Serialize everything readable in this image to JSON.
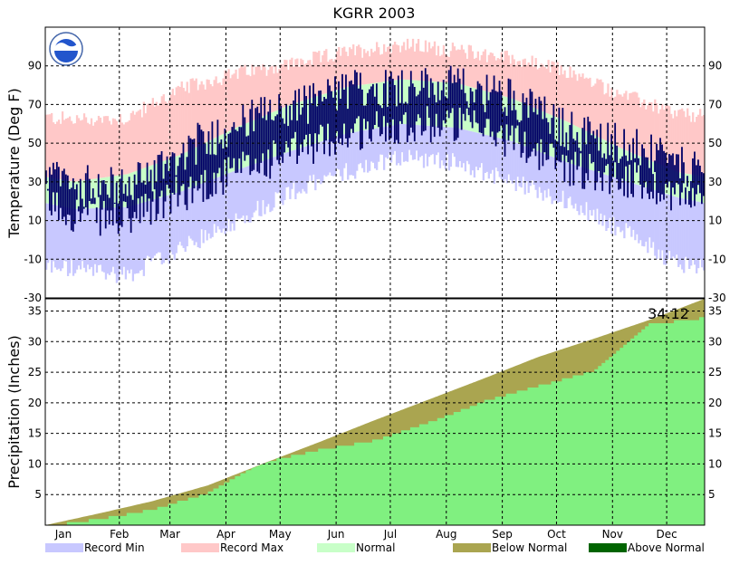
{
  "chart_data": {
    "type": "area",
    "title": "KGRR 2003",
    "x_ticks": [
      "Jan",
      "Feb",
      "Mar",
      "Apr",
      "May",
      "Jun",
      "Jul",
      "Aug",
      "Sep",
      "Oct",
      "Nov",
      "Dec"
    ],
    "days_in_year": 365,
    "month_start_days": [
      0,
      31,
      59,
      90,
      120,
      151,
      181,
      212,
      243,
      273,
      304,
      334
    ],
    "temperature": {
      "ylabel": "Temperature (Deg F)",
      "ylim": [
        -30,
        110
      ],
      "y_ticks": [
        -30,
        -10,
        10,
        30,
        50,
        70,
        90
      ],
      "normal_high_monthly": [
        30,
        34,
        44,
        58,
        70,
        79,
        83,
        81,
        73,
        61,
        47,
        35
      ],
      "normal_low_monthly": [
        16,
        17,
        25,
        36,
        46,
        55,
        60,
        58,
        51,
        40,
        31,
        22
      ],
      "record_high_monthly": [
        62,
        63,
        78,
        86,
        91,
        97,
        101,
        98,
        94,
        87,
        75,
        65
      ],
      "record_low_monthly": [
        -15,
        -18,
        -5,
        10,
        25,
        35,
        43,
        40,
        30,
        20,
        5,
        -12
      ],
      "observed_high_monthly": [
        28,
        27,
        45,
        60,
        68,
        77,
        80,
        79,
        74,
        57,
        50,
        38
      ],
      "observed_low_monthly": [
        14,
        10,
        24,
        35,
        45,
        55,
        60,
        60,
        52,
        38,
        32,
        24
      ]
    },
    "precipitation": {
      "ylabel": "Precipitation (Inches)",
      "ylim": [
        0,
        37
      ],
      "y_ticks": [
        5,
        10,
        15,
        20,
        25,
        30,
        35
      ],
      "annotation": "34.12",
      "normal_cumulative_monthly": [
        0,
        2.0,
        3.9,
        6.5,
        10.0,
        13.5,
        17.0,
        20.5,
        24.0,
        27.5,
        30.5,
        33.5,
        37.0
      ],
      "observed_cumulative_monthly": [
        0,
        1.3,
        2.8,
        5.5,
        10.5,
        12.5,
        14.0,
        17.0,
        20.5,
        23.0,
        25.5,
        33.0,
        34.12
      ]
    },
    "legend": [
      {
        "label": "Record Min",
        "color": "#c8c8ff"
      },
      {
        "label": "Record Max",
        "color": "#ffc8c8"
      },
      {
        "label": "Normal",
        "color": "#c8ffc8"
      },
      {
        "label": "Below Normal",
        "color": "#aaa550"
      },
      {
        "label": "Above Normal",
        "color": "#006400"
      }
    ],
    "colors": {
      "record_min": "#c8c8ff",
      "record_max": "#ffc8c8",
      "normal": "#c8ffc8",
      "observed": "#000066",
      "precip_observed": "#80f080",
      "precip_below": "#aaa550",
      "logo": "#2255cc"
    },
    "grid": true
  }
}
